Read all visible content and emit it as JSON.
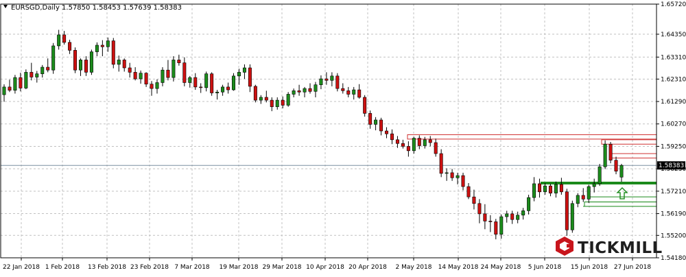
{
  "window": {
    "symbol_line": "EURSGD,Daily  1.57850 1.58453 1.57639 1.58383",
    "menu_icon": "triangle-down-icon"
  },
  "brand": {
    "name": "TICKMILL",
    "logo_icon": "tickmill-hexagon-logo"
  },
  "colors": {
    "bull": "#1c8c1c",
    "bear": "#cc1111",
    "wick": "#000000",
    "grid": "#c0c0c0",
    "support": "#1b8a1b",
    "resistance": "#d03030",
    "current_line": "#7a8fa0",
    "price_box": "#000000"
  },
  "chart_data": {
    "type": "candlestick",
    "title": "EURSGD,Daily",
    "ohlc_header": {
      "open": 1.5785,
      "high": 1.58453,
      "low": 1.57639,
      "close": 1.58383
    },
    "current_price": "1.58383",
    "ylim": [
      1.5418,
      1.6572
    ],
    "y_ticks": [
      "1.65720",
      "1.64350",
      "1.63310",
      "1.62310",
      "1.61290",
      "1.60270",
      "1.59250",
      "1.58230",
      "1.57210",
      "1.56190",
      "1.55200",
      "1.54180"
    ],
    "x_ticks": [
      "22 Jan 2018",
      "1 Feb 2018",
      "13 Feb 2018",
      "23 Feb 2018",
      "7 Mar 2018",
      "19 Mar 2018",
      "29 Mar 2018",
      "10 Apr 2018",
      "20 Apr 2018",
      "2 May 2018",
      "14 May 2018",
      "24 May 2018",
      "5 Jun 2018",
      "15 Jun 2018",
      "27 Jun 2018"
    ],
    "grid": true,
    "candles": [
      [
        1.616,
        1.6207,
        1.6128,
        1.6195
      ],
      [
        1.6195,
        1.6228,
        1.6172,
        1.618
      ],
      [
        1.618,
        1.625,
        1.6165,
        1.6238
      ],
      [
        1.6238,
        1.626,
        1.6175,
        1.619
      ],
      [
        1.619,
        1.6275,
        1.6185,
        1.6262
      ],
      [
        1.6262,
        1.6305,
        1.6225,
        1.624
      ],
      [
        1.624,
        1.6268,
        1.6215,
        1.6255
      ],
      [
        1.6255,
        1.6295,
        1.6238,
        1.6285
      ],
      [
        1.6285,
        1.6325,
        1.6262,
        1.6272
      ],
      [
        1.6272,
        1.6395,
        1.6255,
        1.6382
      ],
      [
        1.6382,
        1.6455,
        1.6365,
        1.6432
      ],
      [
        1.6432,
        1.645,
        1.6388,
        1.6398
      ],
      [
        1.6398,
        1.641,
        1.6345,
        1.6362
      ],
      [
        1.6362,
        1.6375,
        1.6258,
        1.6272
      ],
      [
        1.6272,
        1.6325,
        1.6245,
        1.6318
      ],
      [
        1.6318,
        1.6335,
        1.6245,
        1.6262
      ],
      [
        1.6262,
        1.6365,
        1.625,
        1.6355
      ],
      [
        1.6355,
        1.6398,
        1.6335,
        1.6385
      ],
      [
        1.6385,
        1.6408,
        1.6335,
        1.6378
      ],
      [
        1.6378,
        1.642,
        1.6355,
        1.6405
      ],
      [
        1.6405,
        1.6418,
        1.628,
        1.6298
      ],
      [
        1.6298,
        1.6338,
        1.6265,
        1.6318
      ],
      [
        1.6318,
        1.6325,
        1.6265,
        1.6282
      ],
      [
        1.6282,
        1.6305,
        1.6238,
        1.6262
      ],
      [
        1.6262,
        1.6285,
        1.6225,
        1.6232
      ],
      [
        1.6232,
        1.627,
        1.621,
        1.6258
      ],
      [
        1.6258,
        1.6262,
        1.6195,
        1.6208
      ],
      [
        1.6208,
        1.6222,
        1.6155,
        1.6188
      ],
      [
        1.6188,
        1.623,
        1.6165,
        1.6215
      ],
      [
        1.6215,
        1.6285,
        1.6198,
        1.6272
      ],
      [
        1.6272,
        1.6318,
        1.6225,
        1.6238
      ],
      [
        1.6238,
        1.6335,
        1.622,
        1.6318
      ],
      [
        1.6318,
        1.6342,
        1.6292,
        1.6305
      ],
      [
        1.6305,
        1.633,
        1.6198,
        1.6215
      ],
      [
        1.6215,
        1.6245,
        1.6192,
        1.6238
      ],
      [
        1.6238,
        1.6258,
        1.6182,
        1.6195
      ],
      [
        1.6195,
        1.6212,
        1.6168,
        1.6192
      ],
      [
        1.6192,
        1.6265,
        1.6175,
        1.6255
      ],
      [
        1.6255,
        1.6262,
        1.6155,
        1.6168
      ],
      [
        1.6168,
        1.6182,
        1.6138,
        1.6172
      ],
      [
        1.6172,
        1.6205,
        1.6155,
        1.6195
      ],
      [
        1.6195,
        1.6215,
        1.6165,
        1.6182
      ],
      [
        1.6182,
        1.6258,
        1.6178,
        1.6245
      ],
      [
        1.6245,
        1.6278,
        1.6205,
        1.6262
      ],
      [
        1.6262,
        1.6298,
        1.6232,
        1.6282
      ],
      [
        1.6282,
        1.6298,
        1.6172,
        1.6198
      ],
      [
        1.6198,
        1.6205,
        1.6125,
        1.6135
      ],
      [
        1.6135,
        1.6158,
        1.6118,
        1.6148
      ],
      [
        1.6148,
        1.6178,
        1.6125,
        1.6135
      ],
      [
        1.6135,
        1.6148,
        1.6085,
        1.6105
      ],
      [
        1.6105,
        1.6148,
        1.6092,
        1.6135
      ],
      [
        1.6135,
        1.6152,
        1.6098,
        1.6112
      ],
      [
        1.6112,
        1.6172,
        1.6105,
        1.6162
      ],
      [
        1.6162,
        1.6188,
        1.6148,
        1.6178
      ],
      [
        1.6178,
        1.6205,
        1.6155,
        1.6172
      ],
      [
        1.6172,
        1.6195,
        1.6148,
        1.6188
      ],
      [
        1.6188,
        1.6212,
        1.6165,
        1.6175
      ],
      [
        1.6175,
        1.6218,
        1.6148,
        1.6205
      ],
      [
        1.6205,
        1.6248,
        1.6185,
        1.6232
      ],
      [
        1.6232,
        1.6262,
        1.6205,
        1.6225
      ],
      [
        1.6225,
        1.6262,
        1.6198,
        1.6245
      ],
      [
        1.6245,
        1.6258,
        1.6175,
        1.6188
      ],
      [
        1.6188,
        1.6212,
        1.6165,
        1.6178
      ],
      [
        1.6178,
        1.6195,
        1.6148,
        1.6162
      ],
      [
        1.6162,
        1.6195,
        1.6138,
        1.6182
      ],
      [
        1.6182,
        1.6208,
        1.6142,
        1.6148
      ],
      [
        1.6148,
        1.6158,
        1.606,
        1.6075
      ],
      [
        1.6075,
        1.6088,
        1.6005,
        1.6025
      ],
      [
        1.6025,
        1.6058,
        1.5998,
        1.6045
      ],
      [
        1.6045,
        1.6055,
        1.5975,
        1.5995
      ],
      [
        1.5995,
        1.6012,
        1.5962,
        1.5982
      ],
      [
        1.5982,
        1.6002,
        1.5935,
        1.5955
      ],
      [
        1.5955,
        1.5972,
        1.5918,
        1.5938
      ],
      [
        1.5938,
        1.5955,
        1.5915,
        1.5925
      ],
      [
        1.5925,
        1.5948,
        1.5878,
        1.5905
      ],
      [
        1.5905,
        1.5968,
        1.5892,
        1.5962
      ],
      [
        1.5962,
        1.5975,
        1.5912,
        1.5928
      ],
      [
        1.5928,
        1.5968,
        1.5915,
        1.5955
      ],
      [
        1.5955,
        1.5972,
        1.5925,
        1.5942
      ],
      [
        1.5942,
        1.596,
        1.5878,
        1.5892
      ],
      [
        1.5892,
        1.5912,
        1.5785,
        1.5802
      ],
      [
        1.5802,
        1.5825,
        1.5768,
        1.5805
      ],
      [
        1.5805,
        1.5822,
        1.5768,
        1.5782
      ],
      [
        1.5782,
        1.5805,
        1.5752,
        1.5792
      ],
      [
        1.5792,
        1.5805,
        1.5725,
        1.5742
      ],
      [
        1.5742,
        1.5758,
        1.5685,
        1.5695
      ],
      [
        1.5695,
        1.5728,
        1.5638,
        1.5665
      ],
      [
        1.5665,
        1.5685,
        1.5575,
        1.5618
      ],
      [
        1.5618,
        1.5662,
        1.5548,
        1.5585
      ],
      [
        1.5585,
        1.5612,
        1.5535,
        1.5582
      ],
      [
        1.5582,
        1.5595,
        1.5502,
        1.5525
      ],
      [
        1.5525,
        1.5615,
        1.5505,
        1.5605
      ],
      [
        1.5605,
        1.5632,
        1.5578,
        1.5618
      ],
      [
        1.5618,
        1.5632,
        1.5572,
        1.5592
      ],
      [
        1.5592,
        1.5628,
        1.5575,
        1.5612
      ],
      [
        1.5612,
        1.5645,
        1.5592,
        1.5632
      ],
      [
        1.5632,
        1.5705,
        1.5615,
        1.5692
      ],
      [
        1.5692,
        1.5785,
        1.5675,
        1.5755
      ],
      [
        1.5755,
        1.5778,
        1.5692,
        1.5718
      ],
      [
        1.5718,
        1.5758,
        1.5705,
        1.5745
      ],
      [
        1.5745,
        1.5755,
        1.5698,
        1.5712
      ],
      [
        1.5712,
        1.5765,
        1.5692,
        1.5752
      ],
      [
        1.5752,
        1.5782,
        1.5705,
        1.5718
      ],
      [
        1.5718,
        1.5732,
        1.5518,
        1.5545
      ],
      [
        1.5545,
        1.5678,
        1.5532,
        1.5665
      ],
      [
        1.5665,
        1.5712,
        1.5648,
        1.5702
      ],
      [
        1.5702,
        1.5735,
        1.5672,
        1.5685
      ],
      [
        1.5685,
        1.575,
        1.5668,
        1.5742
      ],
      [
        1.5742,
        1.5778,
        1.5715,
        1.5755
      ],
      [
        1.5755,
        1.5845,
        1.5745,
        1.5832
      ],
      [
        1.5832,
        1.5952,
        1.5822,
        1.5935
      ],
      [
        1.5935,
        1.5945,
        1.5848,
        1.5862
      ],
      [
        1.5862,
        1.5878,
        1.5798,
        1.5812
      ],
      [
        1.5785,
        1.58453,
        1.57639,
        1.58383
      ]
    ],
    "resistance_zones": [
      [
        1.5958,
        1.5978
      ],
      [
        1.5935,
        1.5955
      ],
      [
        1.5872,
        1.5892
      ]
    ],
    "support_levels": [
      1.5758,
      1.5695,
      1.5672,
      1.5652
    ],
    "annotations": [
      {
        "type": "up-arrow-outline",
        "price": 1.5705
      }
    ]
  }
}
